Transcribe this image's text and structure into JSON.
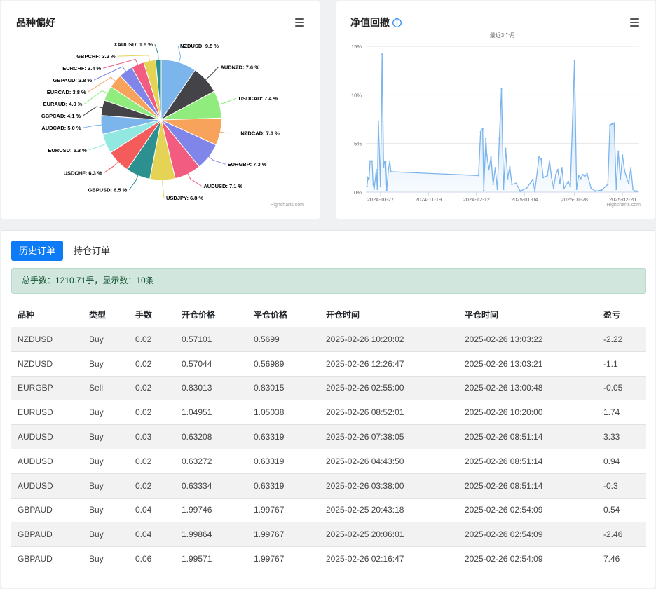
{
  "pie_card": {
    "title": "品种偏好",
    "credits": "Highcharts.com",
    "menu_icon": "hamburger-menu-icon"
  },
  "drawdown_card": {
    "title": "净值回撤",
    "info_icon": "info-circle-icon",
    "credits": "Highcharts.com",
    "menu_icon": "hamburger-menu-icon"
  },
  "chart_data": [
    {
      "type": "pie",
      "title": "品种偏好",
      "slices": [
        {
          "label": "NZDUSD: 9.5 %",
          "value": 9.5,
          "color": "#7cb5ec"
        },
        {
          "label": "AUDNZD: 7.6 %",
          "value": 7.6,
          "color": "#434348"
        },
        {
          "label": "USDCAD: 7.4 %",
          "value": 7.4,
          "color": "#90ed7d"
        },
        {
          "label": "NZDCAD: 7.3 %",
          "value": 7.3,
          "color": "#f7a35c"
        },
        {
          "label": "EURGBP: 7.3 %",
          "value": 7.3,
          "color": "#8085e9"
        },
        {
          "label": "AUDUSD: 7.1 %",
          "value": 7.1,
          "color": "#f15c80"
        },
        {
          "label": "USDJPY: 6.8 %",
          "value": 6.8,
          "color": "#e4d354"
        },
        {
          "label": "GBPUSD: 6.5 %",
          "value": 6.5,
          "color": "#2b908f"
        },
        {
          "label": "USDCHF: 6.3 %",
          "value": 6.3,
          "color": "#f45b5b"
        },
        {
          "label": "EURUSD: 5.3 %",
          "value": 5.3,
          "color": "#91e8e1"
        },
        {
          "label": "AUDCAD: 5.0 %",
          "value": 5.0,
          "color": "#7cb5ec"
        },
        {
          "label": "GBPCAD: 4.1 %",
          "value": 4.1,
          "color": "#434348"
        },
        {
          "label": "EURAUD: 4.0 %",
          "value": 4.0,
          "color": "#90ed7d"
        },
        {
          "label": "EURCAD: 3.8 %",
          "value": 3.8,
          "color": "#f7a35c"
        },
        {
          "label": "GBPAUD: 3.8 %",
          "value": 3.8,
          "color": "#8085e9"
        },
        {
          "label": "EURCHF: 3.4 %",
          "value": 3.4,
          "color": "#f15c80"
        },
        {
          "label": "GBPCHF: 3.2 %",
          "value": 3.2,
          "color": "#e4d354"
        },
        {
          "label": "XAUUSD: 1.5 %",
          "value": 1.5,
          "color": "#2b908f"
        }
      ]
    },
    {
      "type": "area",
      "title": "净值回撤",
      "subtitle": "最近3个月",
      "y_ticks": [
        "0%",
        "5%",
        "10%",
        "15%"
      ],
      "ylim": [
        0,
        15
      ],
      "x_ticks": [
        "2024-10-27",
        "2024-11-19",
        "2024-12-12",
        "2025-01-04",
        "2025-01-28",
        "2025-02-20"
      ],
      "x_tick_days": [
        0,
        23,
        46,
        69,
        93,
        116
      ],
      "xlim_days": [
        -7,
        124
      ],
      "points": [
        [
          -6.5,
          0.6
        ],
        [
          -6,
          1.5
        ],
        [
          -5.5,
          1.3
        ],
        [
          -5,
          3.2
        ],
        [
          -4,
          3.2
        ],
        [
          -3.5,
          0.8
        ],
        [
          -3,
          0.3
        ],
        [
          -2,
          2.3
        ],
        [
          -1.5,
          0.3
        ],
        [
          -1,
          7.3
        ],
        [
          0,
          0.6
        ],
        [
          0.8,
          14.2
        ],
        [
          1.5,
          2.6
        ],
        [
          2,
          3.1
        ],
        [
          2.5,
          3.1
        ],
        [
          3,
          0.2
        ],
        [
          3.8,
          2.3
        ],
        [
          4.5,
          3.2
        ],
        [
          5,
          2.1
        ],
        [
          47,
          1.7
        ],
        [
          48,
          6.2
        ],
        [
          48.5,
          6.4
        ],
        [
          49,
          6.5
        ],
        [
          49.5,
          0.2
        ],
        [
          50.5,
          5.5
        ],
        [
          51,
          3.8
        ],
        [
          52,
          2.3
        ],
        [
          53,
          3.6
        ],
        [
          54,
          0.8
        ],
        [
          55,
          2.5
        ],
        [
          56,
          0.3
        ],
        [
          57,
          5.5
        ],
        [
          58,
          10.6
        ],
        [
          59,
          0.3
        ],
        [
          60,
          4.5
        ],
        [
          61,
          1.4
        ],
        [
          62,
          2.6
        ],
        [
          63,
          0.8
        ],
        [
          65,
          0.9
        ],
        [
          67,
          0.1
        ],
        [
          70,
          0.4
        ],
        [
          73,
          1.3
        ],
        [
          74,
          0.1
        ],
        [
          76,
          3.6
        ],
        [
          77,
          3.4
        ],
        [
          78,
          1.5
        ],
        [
          80,
          1.7
        ],
        [
          81,
          3.2
        ],
        [
          82,
          1.5
        ],
        [
          83,
          0.4
        ],
        [
          84,
          1.8
        ],
        [
          85,
          2.3
        ],
        [
          86,
          0.9
        ],
        [
          87,
          2.5
        ],
        [
          88,
          0.4
        ],
        [
          90,
          1.1
        ],
        [
          91,
          0.6
        ],
        [
          93,
          13.5
        ],
        [
          94,
          0.3
        ],
        [
          95,
          1.7
        ],
        [
          96,
          1.4
        ],
        [
          97,
          1.8
        ],
        [
          98,
          1.6
        ],
        [
          99,
          1.9
        ],
        [
          101,
          0.4
        ],
        [
          103,
          0.1
        ],
        [
          106,
          0.2
        ],
        [
          109,
          0.8
        ],
        [
          110,
          6.9
        ],
        [
          111,
          7.0
        ],
        [
          112,
          7.1
        ],
        [
          113,
          0.3
        ],
        [
          114,
          4.2
        ],
        [
          115,
          1.3
        ],
        [
          116,
          3.8
        ],
        [
          117,
          2.2
        ],
        [
          118,
          1.5
        ],
        [
          119,
          0.9
        ],
        [
          120,
          2.5
        ],
        [
          121,
          0.3
        ],
        [
          122,
          0.1
        ],
        [
          123,
          0.1
        ]
      ],
      "color": "#7cb5ec"
    }
  ],
  "orders": {
    "tabs": [
      "历史订单",
      "持仓订单"
    ],
    "active_tab": 0,
    "summary": "总手数：1210.71手，显示数：10条",
    "columns": [
      "品种",
      "类型",
      "手数",
      "开仓价格",
      "平仓价格",
      "开仓时间",
      "平仓时间",
      "盈亏"
    ],
    "rows": [
      [
        "NZDUSD",
        "Buy",
        "0.02",
        "0.57101",
        "0.5699",
        "2025-02-26 10:20:02",
        "2025-02-26 13:03:22",
        "-2.22"
      ],
      [
        "NZDUSD",
        "Buy",
        "0.02",
        "0.57044",
        "0.56989",
        "2025-02-26 12:26:47",
        "2025-02-26 13:03:21",
        "-1.1"
      ],
      [
        "EURGBP",
        "Sell",
        "0.02",
        "0.83013",
        "0.83015",
        "2025-02-26 02:55:00",
        "2025-02-26 13:00:48",
        "-0.05"
      ],
      [
        "EURUSD",
        "Buy",
        "0.02",
        "1.04951",
        "1.05038",
        "2025-02-26 08:52:01",
        "2025-02-26 10:20:00",
        "1.74"
      ],
      [
        "AUDUSD",
        "Buy",
        "0.03",
        "0.63208",
        "0.63319",
        "2025-02-26 07:38:05",
        "2025-02-26 08:51:14",
        "3.33"
      ],
      [
        "AUDUSD",
        "Buy",
        "0.02",
        "0.63272",
        "0.63319",
        "2025-02-26 04:43:50",
        "2025-02-26 08:51:14",
        "0.94"
      ],
      [
        "AUDUSD",
        "Buy",
        "0.02",
        "0.63334",
        "0.63319",
        "2025-02-26 03:38:00",
        "2025-02-26 08:51:14",
        "-0.3"
      ],
      [
        "GBPAUD",
        "Buy",
        "0.04",
        "1.99746",
        "1.99767",
        "2025-02-25 20:43:18",
        "2025-02-26 02:54:09",
        "0.54"
      ],
      [
        "GBPAUD",
        "Buy",
        "0.04",
        "1.99864",
        "1.99767",
        "2025-02-25 20:06:01",
        "2025-02-26 02:54:09",
        "-2.46"
      ],
      [
        "GBPAUD",
        "Buy",
        "0.06",
        "1.99571",
        "1.99767",
        "2025-02-26 02:16:47",
        "2025-02-26 02:54:09",
        "7.46"
      ]
    ]
  }
}
